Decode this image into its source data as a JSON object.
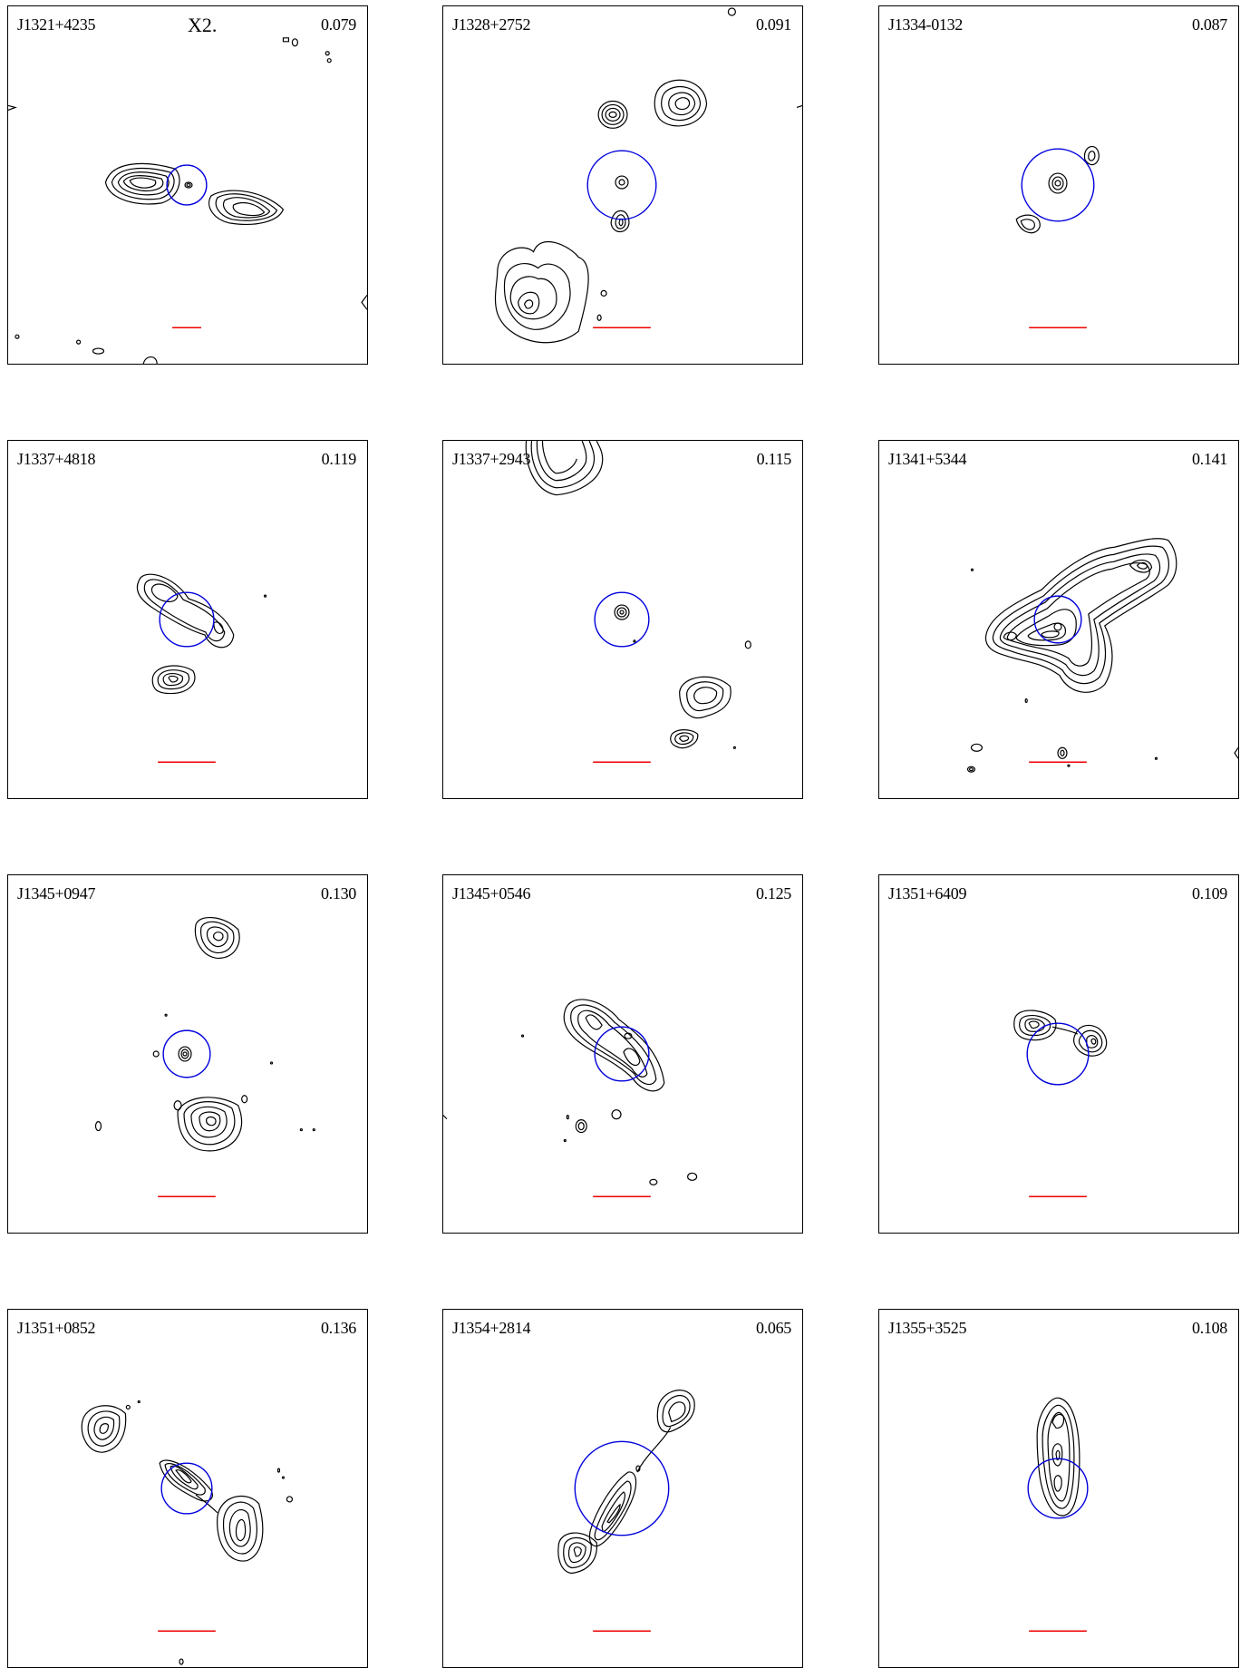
{
  "figure_tag": "X2.",
  "panels": [
    {
      "name": "J1321+4235",
      "z": "0.079"
    },
    {
      "name": "J1328+2752",
      "z": "0.091"
    },
    {
      "name": "J1334-0132",
      "z": "0.087"
    },
    {
      "name": "J1337+4818",
      "z": "0.119"
    },
    {
      "name": "J1337+2943",
      "z": "0.115"
    },
    {
      "name": "J1341+5344",
      "z": "0.141"
    },
    {
      "name": "J1345+0947",
      "z": "0.130"
    },
    {
      "name": "J1345+0546",
      "z": "0.125"
    },
    {
      "name": "J1351+6409",
      "z": "0.109"
    },
    {
      "name": "J1351+0852",
      "z": "0.136"
    },
    {
      "name": "J1354+2814",
      "z": "0.065"
    },
    {
      "name": "J1355+3525",
      "z": "0.108"
    }
  ],
  "colors": {
    "ring": "#0000dd",
    "scale_bar": "#ee0000",
    "contour": "#000000"
  }
}
